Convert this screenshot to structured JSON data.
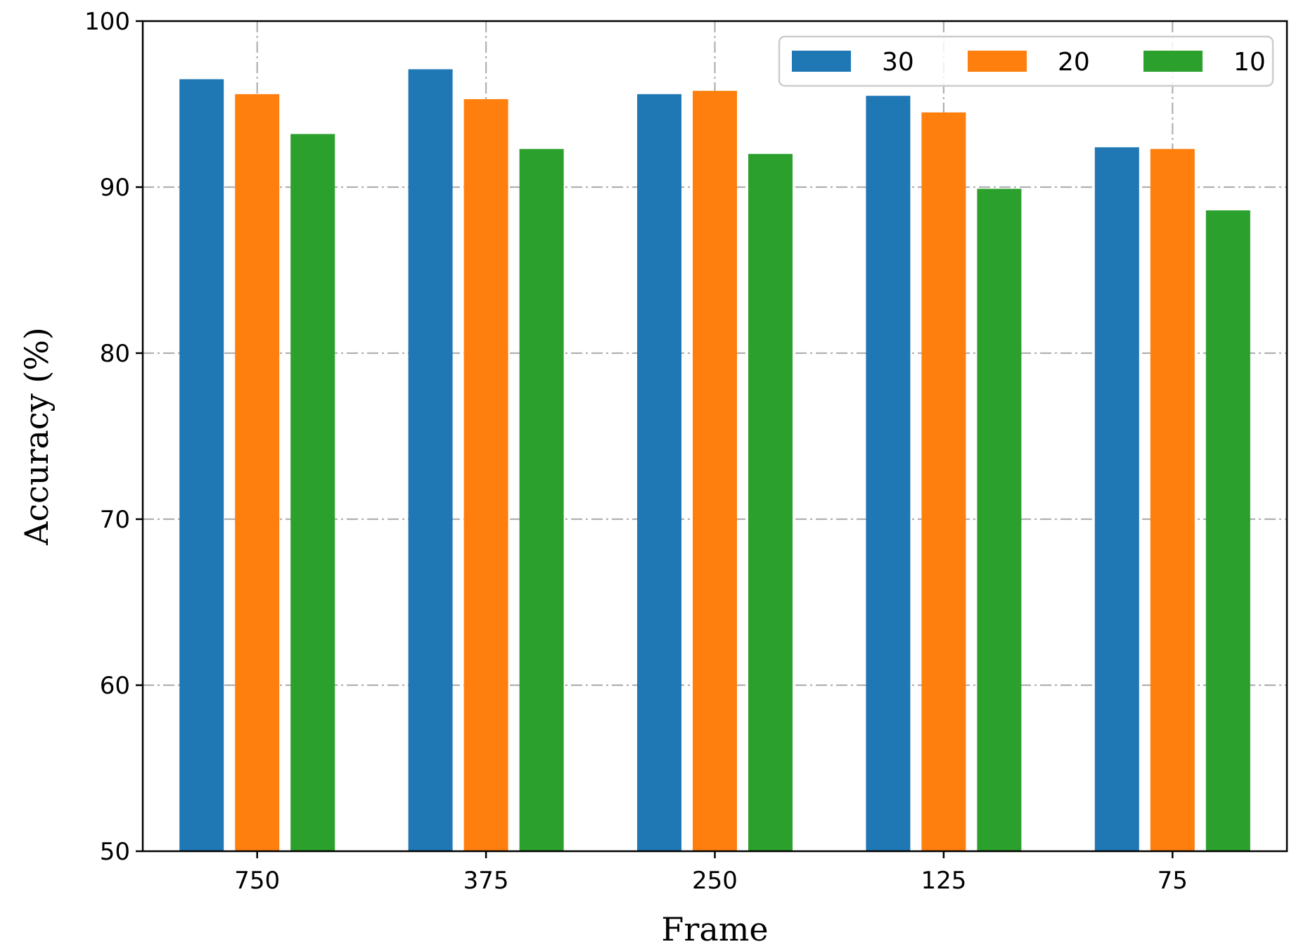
{
  "chart_data": {
    "type": "bar",
    "categories": [
      "750",
      "375",
      "250",
      "125",
      "75"
    ],
    "series": [
      {
        "name": "30",
        "color": "#1f77b4",
        "values": [
          96.5,
          97.1,
          95.6,
          95.5,
          92.4
        ]
      },
      {
        "name": "20",
        "color": "#ff7f0e",
        "values": [
          95.6,
          95.3,
          95.8,
          94.5,
          92.3
        ]
      },
      {
        "name": "10",
        "color": "#2ca02c",
        "values": [
          93.2,
          92.3,
          92.0,
          89.9,
          88.6
        ]
      }
    ],
    "xlabel": "Frame",
    "ylabel": "Accuracy (%)",
    "ylim": [
      50,
      100
    ],
    "yticks": [
      50,
      60,
      70,
      80,
      90,
      100
    ],
    "grid": true,
    "legend": {
      "placement": "top-right",
      "columns": 3
    }
  }
}
